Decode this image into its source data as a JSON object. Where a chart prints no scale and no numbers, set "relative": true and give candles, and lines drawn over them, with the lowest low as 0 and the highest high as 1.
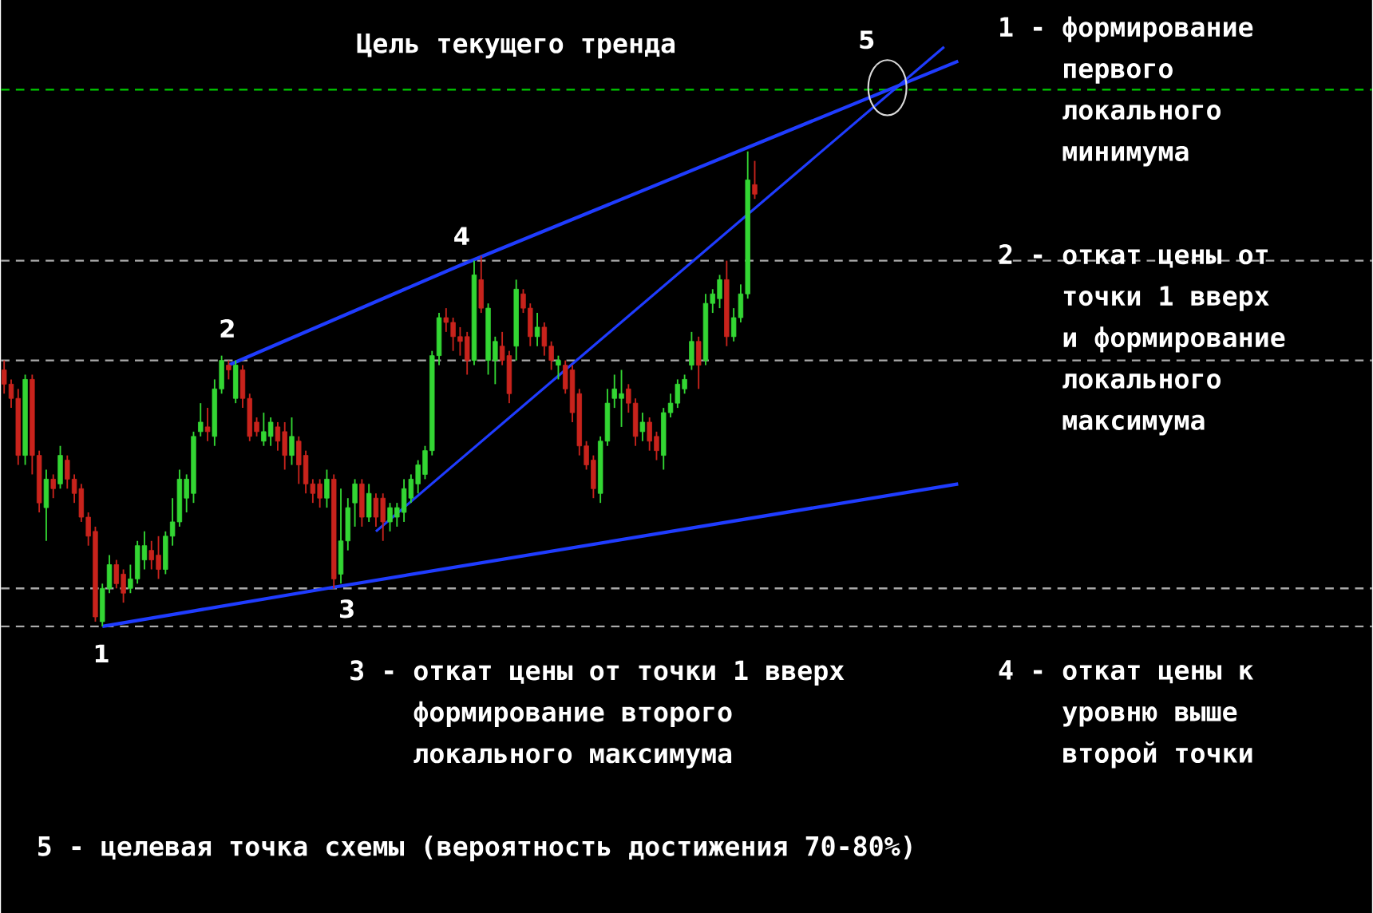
{
  "chart_data": {
    "type": "candlestick",
    "relative": true,
    "categories": [
      null,
      null,
      null,
      null,
      null,
      null,
      null,
      null,
      null,
      null,
      null,
      null,
      null,
      null,
      null,
      null,
      null,
      null,
      null,
      null,
      null,
      null,
      null,
      null,
      null,
      null,
      null,
      null,
      null,
      null,
      null,
      null,
      null,
      null,
      null,
      null,
      null,
      null,
      null,
      null,
      null,
      null,
      null,
      null,
      null,
      null,
      null,
      null,
      null,
      null,
      null,
      null,
      null,
      null,
      null,
      null,
      null,
      null,
      null,
      null,
      null,
      null,
      null,
      null,
      null,
      null,
      null,
      null,
      null,
      null,
      null,
      null,
      null,
      null,
      null,
      null,
      null,
      null,
      null,
      null,
      null,
      null,
      null,
      null,
      null,
      null,
      null,
      null,
      null,
      null,
      null,
      null,
      null,
      null,
      null,
      null,
      null,
      null,
      null,
      null,
      null,
      null,
      null,
      null,
      null,
      null,
      null,
      null,
      null,
      null,
      null,
      null,
      null,
      null,
      null,
      null,
      null,
      null,
      null,
      null,
      null,
      null,
      null,
      null,
      null,
      null,
      null,
      null,
      null,
      null,
      null,
      null,
      null,
      null,
      null,
      null,
      null
    ],
    "ohlc": [
      [
        0.54,
        0.56,
        0.49,
        0.51
      ],
      [
        0.51,
        0.52,
        0.46,
        0.48
      ],
      [
        0.48,
        0.5,
        0.34,
        0.36
      ],
      [
        0.36,
        0.53,
        0.34,
        0.52
      ],
      [
        0.52,
        0.53,
        0.32,
        0.36
      ],
      [
        0.36,
        0.37,
        0.24,
        0.26
      ],
      [
        0.25,
        0.33,
        0.18,
        0.31
      ],
      [
        0.31,
        0.32,
        0.27,
        0.29
      ],
      [
        0.3,
        0.38,
        0.29,
        0.36
      ],
      [
        0.35,
        0.36,
        0.29,
        0.31
      ],
      [
        0.31,
        0.32,
        0.26,
        0.28
      ],
      [
        0.29,
        0.3,
        0.22,
        0.23
      ],
      [
        0.23,
        0.24,
        0.17,
        0.19
      ],
      [
        0.2,
        0.21,
        0.01,
        0.02
      ],
      [
        0.01,
        0.09,
        0.0,
        0.08
      ],
      [
        0.08,
        0.15,
        0.07,
        0.13
      ],
      [
        0.13,
        0.14,
        0.08,
        0.09
      ],
      [
        0.11,
        0.12,
        0.05,
        0.07
      ],
      [
        0.08,
        0.13,
        0.07,
        0.1
      ],
      [
        0.1,
        0.18,
        0.09,
        0.17
      ],
      [
        0.14,
        0.2,
        0.12,
        0.17
      ],
      [
        0.16,
        0.18,
        0.12,
        0.14
      ],
      [
        0.15,
        0.19,
        0.1,
        0.12
      ],
      [
        0.12,
        0.2,
        0.11,
        0.19
      ],
      [
        0.19,
        0.27,
        0.17,
        0.22
      ],
      [
        0.22,
        0.33,
        0.21,
        0.31
      ],
      [
        0.27,
        0.32,
        0.24,
        0.31
      ],
      [
        0.28,
        0.41,
        0.26,
        0.4
      ],
      [
        0.41,
        0.47,
        0.4,
        0.43
      ],
      [
        0.42,
        0.46,
        0.39,
        0.41
      ],
      [
        0.4,
        0.52,
        0.38,
        0.5
      ],
      [
        0.5,
        0.57,
        0.49,
        0.56
      ],
      [
        0.55,
        0.56,
        0.52,
        0.54
      ],
      [
        0.48,
        0.56,
        0.47,
        0.55
      ],
      [
        0.54,
        0.55,
        0.46,
        0.48
      ],
      [
        0.48,
        0.49,
        0.39,
        0.4
      ],
      [
        0.43,
        0.44,
        0.4,
        0.41
      ],
      [
        0.39,
        0.45,
        0.38,
        0.41
      ],
      [
        0.4,
        0.44,
        0.38,
        0.43
      ],
      [
        0.42,
        0.43,
        0.37,
        0.39
      ],
      [
        0.41,
        0.43,
        0.33,
        0.36
      ],
      [
        0.36,
        0.44,
        0.34,
        0.4
      ],
      [
        0.39,
        0.4,
        0.3,
        0.34
      ],
      [
        0.36,
        0.37,
        0.28,
        0.3
      ],
      [
        0.3,
        0.31,
        0.26,
        0.28
      ],
      [
        0.3,
        0.31,
        0.25,
        0.27
      ],
      [
        0.27,
        0.33,
        0.25,
        0.31
      ],
      [
        0.31,
        0.32,
        0.08,
        0.1
      ],
      [
        0.11,
        0.29,
        0.09,
        0.18
      ],
      [
        0.18,
        0.27,
        0.16,
        0.25
      ],
      [
        0.26,
        0.31,
        0.21,
        0.3
      ],
      [
        0.3,
        0.31,
        0.21,
        0.23
      ],
      [
        0.23,
        0.3,
        0.22,
        0.28
      ],
      [
        0.27,
        0.28,
        0.21,
        0.23
      ],
      [
        0.27,
        0.28,
        0.18,
        0.22
      ],
      [
        0.22,
        0.26,
        0.2,
        0.25
      ],
      [
        0.23,
        0.26,
        0.21,
        0.25
      ],
      [
        0.24,
        0.31,
        0.22,
        0.29
      ],
      [
        0.27,
        0.32,
        0.26,
        0.31
      ],
      [
        0.3,
        0.35,
        0.28,
        0.34
      ],
      [
        0.32,
        0.38,
        0.31,
        0.37
      ],
      [
        0.37,
        0.58,
        0.36,
        0.57
      ],
      [
        0.57,
        0.66,
        0.55,
        0.65
      ],
      [
        0.65,
        0.67,
        0.62,
        0.64
      ],
      [
        0.64,
        0.65,
        0.58,
        0.61
      ],
      [
        0.61,
        0.63,
        0.57,
        0.6
      ],
      [
        0.61,
        0.62,
        0.53,
        0.56
      ],
      [
        0.56,
        0.77,
        0.55,
        0.74
      ],
      [
        0.73,
        0.78,
        0.66,
        0.67
      ],
      [
        0.56,
        0.68,
        0.53,
        0.67
      ],
      [
        0.56,
        0.61,
        0.51,
        0.6
      ],
      [
        0.59,
        0.62,
        0.55,
        0.56
      ],
      [
        0.57,
        0.58,
        0.47,
        0.49
      ],
      [
        0.59,
        0.73,
        0.56,
        0.71
      ],
      [
        0.7,
        0.71,
        0.66,
        0.67
      ],
      [
        0.67,
        0.68,
        0.59,
        0.61
      ],
      [
        0.61,
        0.66,
        0.59,
        0.63
      ],
      [
        0.63,
        0.64,
        0.57,
        0.59
      ],
      [
        0.59,
        0.6,
        0.54,
        0.56
      ],
      [
        0.55,
        0.57,
        0.52,
        0.56
      ],
      [
        0.55,
        0.56,
        0.49,
        0.5
      ],
      [
        0.54,
        0.55,
        0.43,
        0.45
      ],
      [
        0.49,
        0.5,
        0.36,
        0.38
      ],
      [
        0.38,
        0.39,
        0.33,
        0.34
      ],
      [
        0.35,
        0.36,
        0.27,
        0.29
      ],
      [
        0.28,
        0.4,
        0.26,
        0.39
      ],
      [
        0.39,
        0.5,
        0.38,
        0.47
      ],
      [
        0.48,
        0.53,
        0.46,
        0.5
      ],
      [
        0.48,
        0.54,
        0.42,
        0.49
      ],
      [
        0.5,
        0.51,
        0.45,
        0.47
      ],
      [
        0.47,
        0.48,
        0.38,
        0.4
      ],
      [
        0.41,
        0.45,
        0.39,
        0.43
      ],
      [
        0.43,
        0.44,
        0.37,
        0.39
      ],
      [
        0.4,
        0.41,
        0.35,
        0.37
      ],
      [
        0.36,
        0.46,
        0.33,
        0.45
      ],
      [
        0.45,
        0.49,
        0.44,
        0.47
      ],
      [
        0.47,
        0.52,
        0.46,
        0.51
      ],
      [
        0.5,
        0.53,
        0.49,
        0.52
      ],
      [
        0.55,
        0.62,
        0.54,
        0.6
      ],
      [
        0.6,
        0.61,
        0.5,
        0.55
      ],
      [
        0.56,
        0.7,
        0.55,
        0.68
      ],
      [
        0.68,
        0.71,
        0.66,
        0.7
      ],
      [
        0.69,
        0.74,
        0.67,
        0.73
      ],
      [
        0.73,
        0.77,
        0.59,
        0.61
      ],
      [
        0.61,
        0.67,
        0.6,
        0.65
      ],
      [
        0.65,
        0.72,
        0.64,
        0.7
      ],
      [
        0.7,
        1.0,
        0.69,
        0.94
      ],
      [
        0.93,
        0.98,
        0.9,
        0.91
      ],
      null,
      null,
      null,
      null,
      null,
      null,
      null,
      null,
      null,
      null,
      null,
      null,
      null,
      null,
      null,
      null,
      null,
      null,
      null,
      null,
      null,
      null,
      null,
      null,
      null,
      null,
      null,
      null,
      null
    ],
    "series": [
      {
        "type": "line",
        "color": "#1f3cff",
        "values": [
          null,
          null,
          null,
          null,
          null,
          null,
          null,
          null,
          null,
          null,
          null,
          null,
          null,
          null,
          null,
          null,
          null,
          null,
          null,
          null,
          null,
          null,
          null,
          null,
          null,
          null,
          null,
          null,
          null,
          null,
          null,
          null,
          0.55,
          null,
          null,
          null,
          null,
          null,
          null,
          null,
          null,
          null,
          null,
          null,
          null,
          null,
          null,
          null,
          null,
          null,
          null,
          null,
          null,
          null,
          null,
          null,
          null,
          null,
          null,
          null,
          null,
          null,
          null,
          null,
          null,
          0.76,
          null,
          null,
          null,
          null,
          null,
          null,
          null,
          null,
          null,
          null,
          null,
          null,
          null,
          null,
          null,
          null,
          null,
          null,
          null,
          null,
          null,
          null,
          null,
          null,
          null,
          null,
          null,
          null,
          null,
          null,
          null,
          null,
          null,
          null,
          null,
          null,
          null,
          null,
          null,
          null,
          null,
          null,
          null,
          null,
          null,
          null,
          null,
          null,
          null,
          null,
          null,
          null,
          null,
          null,
          null,
          null,
          null,
          null,
          null,
          null,
          null,
          null,
          null,
          null,
          null,
          null,
          null,
          null,
          null,
          null,
          1.19
        ]
      },
      {
        "type": "line",
        "color": "#1f3cff",
        "values": [
          null,
          null,
          null,
          null,
          null,
          null,
          null,
          null,
          null,
          null,
          null,
          null,
          null,
          null,
          0.0,
          null,
          null,
          null,
          null,
          null,
          null,
          null,
          null,
          null,
          null,
          null,
          null,
          null,
          null,
          null,
          null,
          null,
          null,
          null,
          null,
          null,
          null,
          null,
          null,
          null,
          null,
          null,
          null,
          null,
          null,
          null,
          0.08,
          null,
          null,
          null,
          null,
          null,
          null,
          null,
          null,
          null,
          null,
          null,
          null,
          null,
          null,
          null,
          null,
          null,
          null,
          null,
          null,
          null,
          null,
          null,
          null,
          null,
          null,
          null,
          null,
          null,
          null,
          null,
          null,
          null,
          null,
          null,
          null,
          null,
          null,
          null,
          null,
          null,
          null,
          null,
          null,
          null,
          null,
          null,
          null,
          null,
          null,
          null,
          null,
          null,
          null,
          null,
          null,
          null,
          null,
          null,
          null,
          null,
          null,
          null,
          null,
          null,
          null,
          null,
          null,
          null,
          null,
          null,
          null,
          null,
          null,
          null,
          null,
          null,
          null,
          null,
          null,
          null,
          null,
          null,
          null,
          null,
          null,
          null,
          null,
          null,
          0.3
        ]
      },
      {
        "type": "line",
        "color": "#1f3cff",
        "values": [
          null,
          null,
          null,
          null,
          null,
          null,
          null,
          null,
          null,
          null,
          null,
          null,
          null,
          null,
          null,
          null,
          null,
          null,
          null,
          null,
          null,
          null,
          null,
          null,
          null,
          null,
          null,
          null,
          null,
          null,
          null,
          null,
          null,
          null,
          null,
          null,
          null,
          null,
          null,
          null,
          null,
          null,
          null,
          null,
          null,
          null,
          null,
          null,
          null,
          null,
          null,
          null,
          null,
          0.2,
          null,
          null,
          null,
          null,
          null,
          null,
          null,
          null,
          null,
          null,
          null,
          null,
          null,
          null,
          null,
          null,
          null,
          null,
          null,
          null,
          null,
          null,
          null,
          null,
          null,
          null,
          null,
          null,
          null,
          null,
          null,
          null,
          null,
          null,
          null,
          null,
          null,
          null,
          null,
          null,
          null,
          null,
          null,
          null,
          null,
          null,
          null,
          null,
          null,
          null,
          null,
          null,
          null,
          null,
          null,
          null,
          null,
          null,
          null,
          null,
          null,
          null,
          null,
          null,
          null,
          null,
          null,
          null,
          null,
          null,
          null,
          null,
          null,
          null,
          null,
          null,
          null,
          null,
          null,
          null,
          1.22,
          null,
          null
        ]
      }
    ],
    "ref_lines": [
      {
        "axis": "y",
        "value": 1.13,
        "label": "Цель текущего тренда",
        "color": "#00cc00",
        "line_style": "dashed"
      },
      {
        "axis": "y",
        "value": 0.77,
        "color": "#aaaaaa",
        "line_style": "dashed"
      },
      {
        "axis": "y",
        "value": 0.56,
        "color": "#aaaaaa",
        "line_style": "dashed"
      },
      {
        "axis": "y",
        "value": 0.08,
        "color": "#aaaaaa",
        "line_style": "dashed"
      },
      {
        "axis": "y",
        "value": 0.0,
        "color": "#aaaaaa",
        "line_style": "dashed"
      }
    ],
    "annotations": [
      "1",
      "2",
      "3",
      "4",
      "5",
      "1 - формирование первого локального минимума",
      "2 - откат цены от точки 1 вверх и формирование локального максимума",
      "3 - откат цены от точки 1 вверх формирование второго локального максимума",
      "4 - откат цены к уровню выше второй точки",
      "5 - целевая точка схемы (вероятность достижения 70-80%)"
    ]
  }
}
